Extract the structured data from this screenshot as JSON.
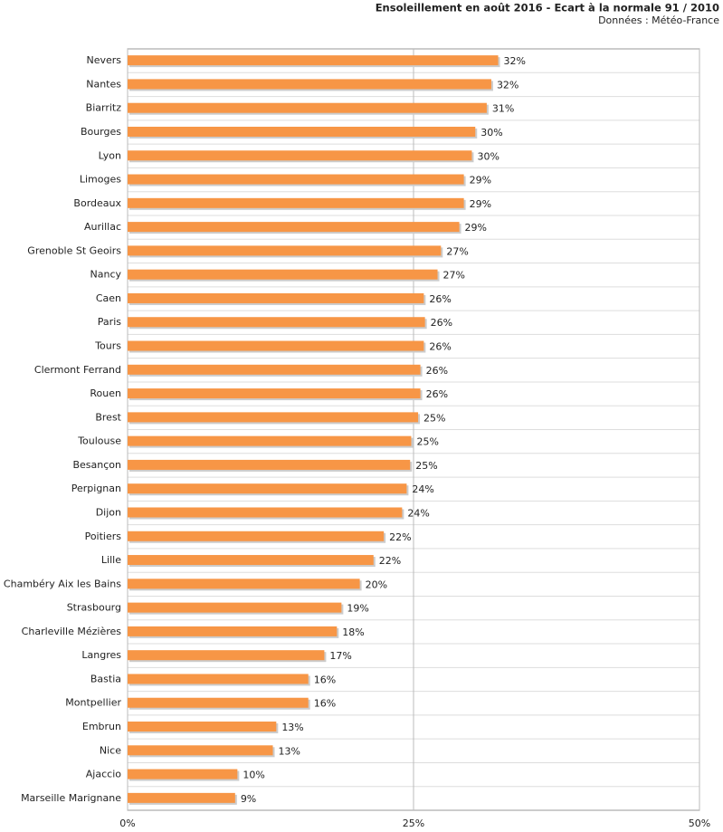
{
  "chart_data": {
    "type": "barh",
    "title": "Ensoleillement en août 2016 - Ecart à la normale 91 / 2010",
    "subtitle": "Données : Météo-France",
    "categories": [
      "Nevers",
      "Nantes",
      "Biarritz",
      "Bourges",
      "Lyon",
      "Limoges",
      "Bordeaux",
      "Aurillac",
      "Grenoble St Geoirs",
      "Nancy",
      "Caen",
      "Paris",
      "Tours",
      "Clermont Ferrand",
      "Rouen",
      "Brest",
      "Toulouse",
      "Besançon",
      "Perpignan",
      "Dijon",
      "Poitiers",
      "Lille",
      "Chambéry Aix les Bains",
      "Strasbourg",
      "Charleville Mézières",
      "Langres",
      "Bastia",
      "Montpellier",
      "Embrun",
      "Nice",
      "Ajaccio",
      "Marseille Marignane"
    ],
    "values": [
      32.4,
      31.8,
      31.4,
      30.4,
      30.1,
      29.4,
      29.4,
      29.0,
      27.4,
      27.1,
      25.9,
      26.0,
      25.9,
      25.6,
      25.6,
      25.4,
      24.8,
      24.7,
      24.4,
      24.0,
      22.4,
      21.5,
      20.3,
      18.7,
      18.3,
      17.2,
      15.8,
      15.8,
      13.0,
      12.7,
      9.6,
      9.4
    ],
    "value_labels": [
      "32%",
      "32%",
      "31%",
      "30%",
      "30%",
      "29%",
      "29%",
      "29%",
      "27%",
      "27%",
      "26%",
      "26%",
      "26%",
      "26%",
      "26%",
      "25%",
      "25%",
      "25%",
      "24%",
      "24%",
      "22%",
      "22%",
      "20%",
      "19%",
      "18%",
      "17%",
      "16%",
      "16%",
      "13%",
      "13%",
      "10%",
      "9%"
    ],
    "color": "#f79646",
    "xlim": [
      0,
      50
    ],
    "xticks": [
      {
        "value": 0,
        "label": "0%"
      },
      {
        "value": 25,
        "label": "25%"
      },
      {
        "value": 50,
        "label": "50%"
      }
    ],
    "grid": true
  }
}
